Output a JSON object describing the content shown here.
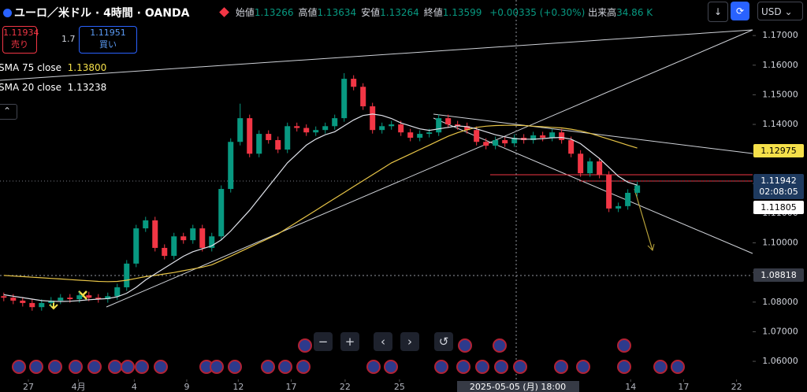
{
  "header": {
    "title": "ユーロ／米ドル · 4時間 · OANDA",
    "ohlc": [
      {
        "label": "始値",
        "value": "1.13266"
      },
      {
        "label": "高値",
        "value": "1.13634"
      },
      {
        "label": "安値",
        "value": "1.13264"
      },
      {
        "label": "終値",
        "value": "1.13599"
      }
    ],
    "change": "+0.00335 (+0.30%)",
    "volume_label": "出来高",
    "volume": "34.86 K",
    "currency": "USD"
  },
  "trade": {
    "sell_price": "1.11934",
    "sell_label": "売り",
    "spread": "1.7",
    "buy_price": "1.11951",
    "buy_label": "買い"
  },
  "legend": [
    {
      "name": "SMA 75 close",
      "value": "1.13800"
    },
    {
      "name": "SMA 20 close",
      "value": "1.13238"
    }
  ],
  "price_tags": {
    "sma75": "1.12975",
    "last": "1.11942",
    "countdown": "02:08:05",
    "sma20": "1.11805",
    "level": "1.08818"
  },
  "crosshair_label": "2025-05-05 (月)   18:00",
  "chart_data": {
    "type": "candlestick",
    "up_color": "#089981",
    "down_color": "#f23645",
    "grid": false,
    "ylim": [
      1.0539,
      1.182
    ],
    "yticks": [
      {
        "value": 1.06,
        "label": "1.06000"
      },
      {
        "value": 1.07,
        "label": "1.07000"
      },
      {
        "value": 1.08,
        "label": "1.08000"
      },
      {
        "value": 1.09,
        "label": "1.09000"
      },
      {
        "value": 1.1,
        "label": "1.10000"
      },
      {
        "value": 1.11,
        "label": "1.11000"
      },
      {
        "value": 1.12,
        "label": "1.12000"
      },
      {
        "value": 1.13,
        "label": "1.13000"
      },
      {
        "value": 1.14,
        "label": "1.14000"
      },
      {
        "value": 1.15,
        "label": "1.15000"
      },
      {
        "value": 1.16,
        "label": "1.16000"
      },
      {
        "value": 1.17,
        "label": "1.17000"
      }
    ],
    "xlim": [
      -0.4,
      79.2
    ],
    "xticks": [
      {
        "value": 2.6,
        "label": "27"
      },
      {
        "value": 7.9,
        "label": "4月"
      },
      {
        "value": 13.8,
        "label": "4"
      },
      {
        "value": 19.35,
        "label": "9"
      },
      {
        "value": 24.8,
        "label": "12"
      },
      {
        "value": 30.4,
        "label": "17"
      },
      {
        "value": 36.1,
        "label": "22"
      },
      {
        "value": 41.85,
        "label": "25"
      },
      {
        "value": 66.3,
        "label": "14"
      },
      {
        "value": 71.9,
        "label": "17"
      },
      {
        "value": 77.5,
        "label": "22"
      }
    ],
    "open": [
      1.082,
      1.0815,
      1.0805,
      1.0797,
      1.0783,
      1.0797,
      1.0805,
      1.0815,
      1.081,
      1.0823,
      1.0815,
      1.081,
      1.082,
      1.085,
      1.093,
      1.1049,
      1.1076,
      1.0983,
      1.0956,
      1.1022,
      1.1009,
      1.1049,
      1.0983,
      1.1022,
      1.1182,
      1.1341,
      1.1421,
      1.1301,
      1.1368,
      1.1347,
      1.1315,
      1.1394,
      1.1388,
      1.1373,
      1.1381,
      1.1394,
      1.1421,
      1.1554,
      1.1527,
      1.1461,
      1.1381,
      1.1394,
      1.14,
      1.1373,
      1.1355,
      1.1368,
      1.1373,
      1.1421,
      1.14,
      1.1394,
      1.1381,
      1.1341,
      1.1328,
      1.1347,
      1.1336,
      1.1355,
      1.1347,
      1.1363,
      1.1355,
      1.1373,
      1.1347,
      1.1301,
      1.1235,
      1.1275,
      1.123,
      1.1116,
      1.1124,
      1.1169
    ],
    "high": [
      1.0832,
      1.0827,
      1.0817,
      1.0809,
      1.0809,
      1.0817,
      1.0827,
      1.0827,
      1.0835,
      1.0835,
      1.0827,
      1.0832,
      1.0862,
      1.0942,
      1.1061,
      1.1088,
      1.1088,
      1.0995,
      1.1034,
      1.1034,
      1.1061,
      1.1061,
      1.1034,
      1.1194,
      1.1353,
      1.147,
      1.1433,
      1.138,
      1.138,
      1.1359,
      1.1406,
      1.1406,
      1.14,
      1.1393,
      1.1406,
      1.1433,
      1.1573,
      1.1566,
      1.1539,
      1.1473,
      1.1406,
      1.1412,
      1.1412,
      1.1385,
      1.138,
      1.1385,
      1.1433,
      1.1433,
      1.1412,
      1.1406,
      1.1393,
      1.1353,
      1.1359,
      1.1359,
      1.1367,
      1.1367,
      1.1375,
      1.1375,
      1.1385,
      1.1385,
      1.1359,
      1.1313,
      1.1287,
      1.1287,
      1.1242,
      1.1136,
      1.1181,
      1.1206
    ],
    "low": [
      1.0803,
      1.0793,
      1.0785,
      1.0771,
      1.0771,
      1.0785,
      1.0793,
      1.0798,
      1.0798,
      1.0803,
      1.0798,
      1.0798,
      1.0808,
      1.0838,
      1.0918,
      1.1037,
      1.0971,
      1.0944,
      1.0944,
      1.0997,
      1.0997,
      1.0971,
      1.0971,
      1.101,
      1.117,
      1.1329,
      1.1289,
      1.1289,
      1.1335,
      1.1303,
      1.1303,
      1.1376,
      1.1361,
      1.1361,
      1.1369,
      1.1382,
      1.1409,
      1.1515,
      1.1449,
      1.1369,
      1.1369,
      1.1382,
      1.1361,
      1.1343,
      1.1343,
      1.1356,
      1.1361,
      1.1388,
      1.1382,
      1.1369,
      1.1329,
      1.1316,
      1.1316,
      1.1324,
      1.1324,
      1.1335,
      1.1335,
      1.1343,
      1.1343,
      1.1335,
      1.1289,
      1.1223,
      1.1223,
      1.1218,
      1.1104,
      1.1104,
      1.1112,
      1.1157
    ],
    "close": [
      1.0815,
      1.0805,
      1.0797,
      1.0783,
      1.0797,
      1.0805,
      1.0815,
      1.081,
      1.0823,
      1.0815,
      1.081,
      1.082,
      1.085,
      1.093,
      1.1049,
      1.1076,
      1.0983,
      1.0956,
      1.1022,
      1.1009,
      1.1049,
      1.0983,
      1.1022,
      1.1182,
      1.1341,
      1.1421,
      1.1301,
      1.1368,
      1.1347,
      1.1315,
      1.1394,
      1.1388,
      1.1373,
      1.1381,
      1.1394,
      1.1421,
      1.1554,
      1.1527,
      1.1461,
      1.1381,
      1.1394,
      1.14,
      1.1373,
      1.1355,
      1.1368,
      1.1373,
      1.1421,
      1.14,
      1.1394,
      1.1381,
      1.1341,
      1.1328,
      1.1347,
      1.1336,
      1.1355,
      1.1347,
      1.1363,
      1.1355,
      1.1373,
      1.1347,
      1.1301,
      1.1235,
      1.1275,
      1.123,
      1.1116,
      1.1124,
      1.1169,
      1.1194
    ],
    "series": [
      {
        "name": "SMA 75 close",
        "color": "#e8c547",
        "values": [
          1.089,
          1.0888,
          1.0886,
          1.0884,
          1.0882,
          1.088,
          1.0878,
          1.0876,
          1.0874,
          1.0872,
          1.087,
          1.0869,
          1.087,
          1.0874,
          1.088,
          1.0886,
          1.089,
          1.0895,
          1.09,
          1.0906,
          1.0912,
          1.0918,
          1.0926,
          1.094,
          1.0955,
          1.097,
          1.0985,
          1.1,
          1.1015,
          1.103,
          1.105,
          1.107,
          1.109,
          1.111,
          1.113,
          1.115,
          1.117,
          1.119,
          1.121,
          1.123,
          1.125,
          1.127,
          1.1285,
          1.13,
          1.1315,
          1.133,
          1.1345,
          1.136,
          1.1372,
          1.1382,
          1.139,
          1.1394,
          1.1396,
          1.1397,
          1.1397,
          1.1396,
          1.1394,
          1.1392,
          1.139,
          1.1388,
          1.1384,
          1.1378,
          1.137,
          1.136,
          1.135,
          1.134,
          1.133,
          1.132
        ]
      },
      {
        "name": "SMA 20 close",
        "color": "#e0e3eb",
        "values": [
          1.0825,
          1.082,
          1.0815,
          1.081,
          1.0805,
          1.0803,
          1.0802,
          1.0803,
          1.0805,
          1.0808,
          1.081,
          1.0812,
          1.0818,
          1.083,
          1.085,
          1.0875,
          1.0895,
          1.0915,
          1.0935,
          1.0955,
          1.097,
          1.098,
          1.099,
          1.101,
          1.104,
          1.1075,
          1.111,
          1.115,
          1.119,
          1.123,
          1.127,
          1.13,
          1.133,
          1.135,
          1.1365,
          1.1375,
          1.1395,
          1.1415,
          1.143,
          1.1435,
          1.143,
          1.142,
          1.1405,
          1.1395,
          1.1385,
          1.138,
          1.1385,
          1.139,
          1.1395,
          1.1392,
          1.1385,
          1.1375,
          1.1365,
          1.1358,
          1.1352,
          1.135,
          1.135,
          1.1352,
          1.1355,
          1.1356,
          1.135,
          1.1335,
          1.131,
          1.1285,
          1.1255,
          1.1225,
          1.1205,
          1.1195
        ]
      }
    ]
  }
}
